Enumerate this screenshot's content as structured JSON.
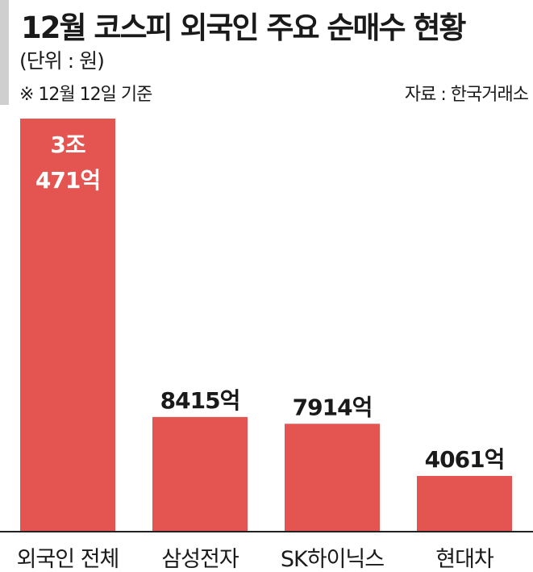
{
  "header": {
    "title": "12월 코스피 외국인 주요 순매수 현황",
    "unit": "(단위 : 원)",
    "note": "※ 12월 12일 기준",
    "source": "자료 : 한국거래소"
  },
  "colors": {
    "bar": "#e45450",
    "axis": "#222222",
    "strip": "#cfcfcf",
    "inner_label": "#ffffff",
    "label": "#1a1a1a"
  },
  "chart_data": {
    "type": "bar",
    "unit": "원",
    "categories": [
      "외국인 전체",
      "삼성전자",
      "SK하이닉스",
      "현대차"
    ],
    "values": [
      3047100000000,
      841500000000,
      791400000000,
      406100000000
    ],
    "value_labels": [
      [
        "3조",
        "471억"
      ],
      [
        "8415억"
      ],
      [
        "7914억"
      ],
      [
        "4061억"
      ]
    ],
    "title": "12월 코스피 외국인 주요 순매수 현황",
    "xlabel": "",
    "ylabel": "",
    "grid": false,
    "legend": "none"
  }
}
